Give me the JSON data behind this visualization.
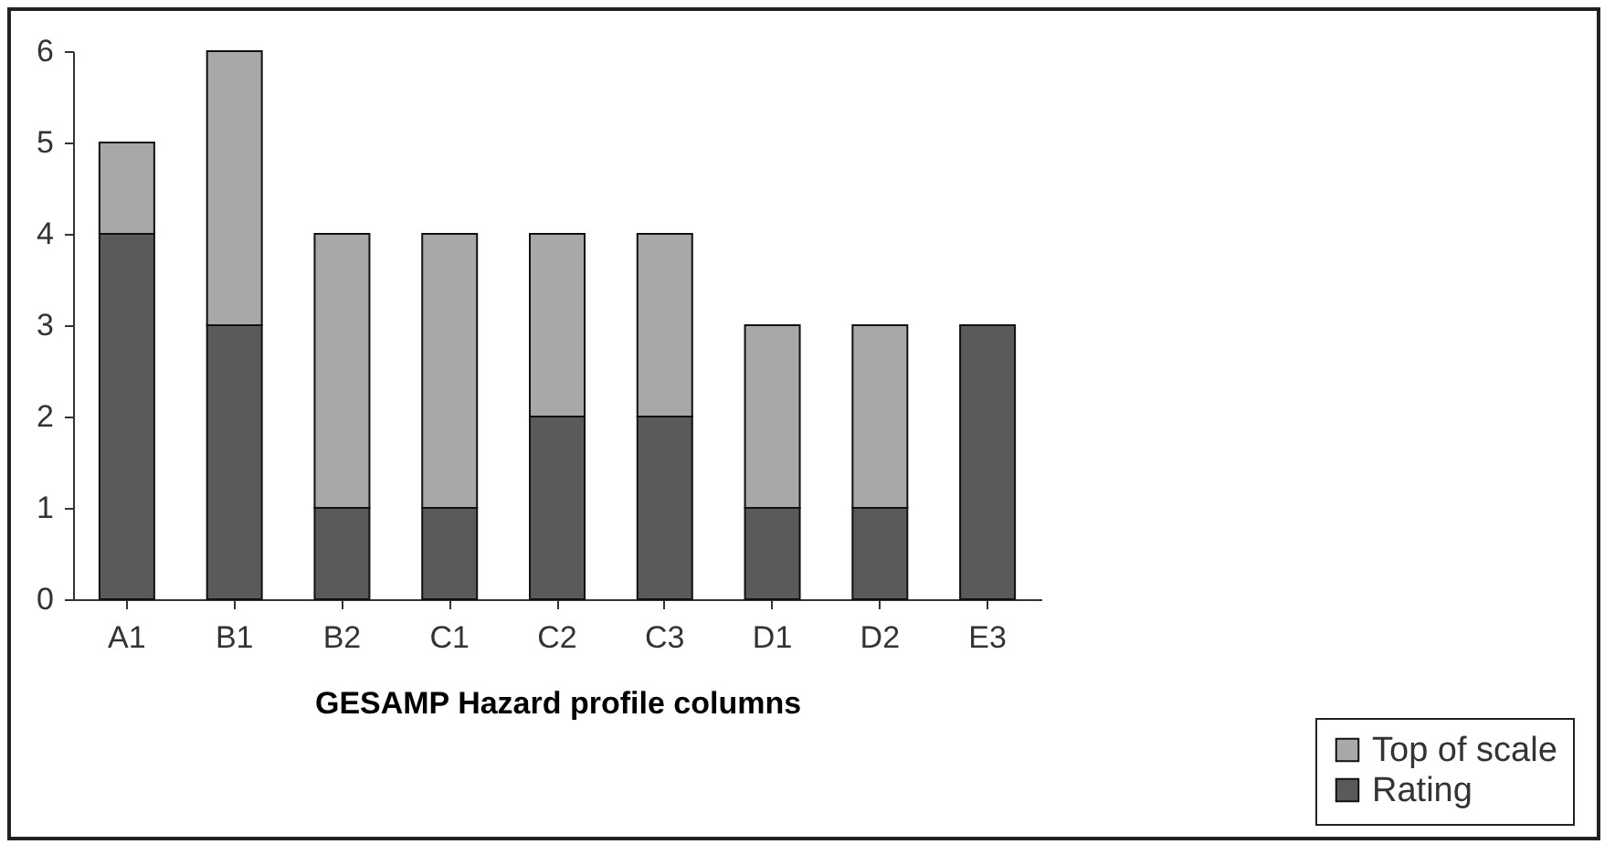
{
  "chart_data": {
    "type": "bar",
    "xlabel": "GESAMP Hazard profile columns",
    "stacked": true,
    "categories": [
      "A1",
      "B1",
      "B2",
      "C1",
      "C2",
      "C3",
      "D1",
      "D2",
      "E3"
    ],
    "series": [
      {
        "name": "Rating",
        "color": "#5a5a5a",
        "values": [
          4,
          3,
          1,
          1,
          2,
          2,
          1,
          1,
          3
        ]
      },
      {
        "name": "Top of scale",
        "color": "#a8a8a8",
        "values": [
          1,
          3,
          3,
          3,
          2,
          2,
          2,
          2,
          null
        ]
      }
    ],
    "ylim": [
      0,
      6
    ],
    "yticks": [
      0,
      1,
      2,
      3,
      4,
      5,
      6
    ],
    "grid": false,
    "legend": "bottom right"
  }
}
